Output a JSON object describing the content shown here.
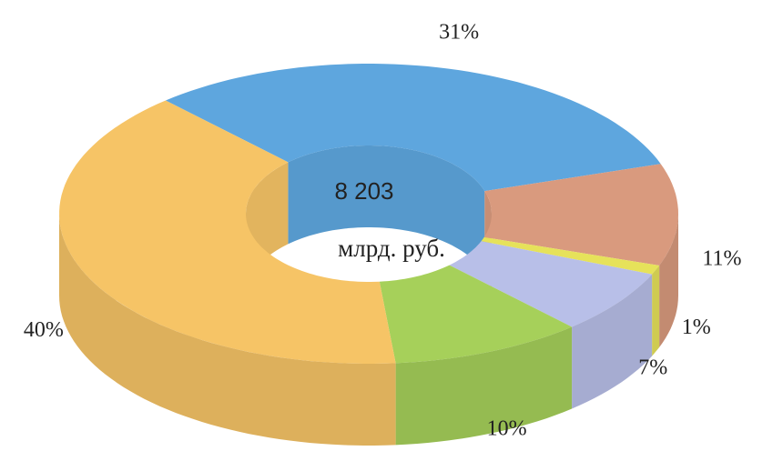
{
  "chart_data": {
    "type": "donut3d",
    "categories": [
      null,
      null,
      null,
      null,
      null,
      null
    ],
    "values": [
      31,
      11,
      1,
      7,
      10,
      40
    ],
    "value_labels": [
      "31%",
      "11%",
      "1%",
      "7%",
      "10%",
      "40%"
    ],
    "colors": [
      "#5ea6de",
      "#d99a7e",
      "#e6e25a",
      "#b8bfe8",
      "#a6d05a",
      "#f6c466"
    ],
    "annotations": [
      "8 203",
      "млрд. руб."
    ]
  }
}
